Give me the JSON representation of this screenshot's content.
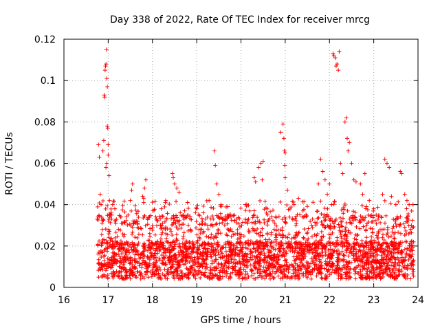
{
  "chart_data": {
    "type": "scatter",
    "title": "Day 338 of 2022, Rate Of TEC Index for receiver mrcg",
    "xlabel": "GPS time / hours",
    "ylabel": "ROTI / TECUs",
    "xlim": [
      16,
      24
    ],
    "ylim": [
      0,
      0.12
    ],
    "xticks": [
      16,
      17,
      18,
      19,
      20,
      21,
      22,
      23,
      24
    ],
    "xtick_labels": [
      "16",
      "17",
      "18",
      "19",
      "20",
      "21",
      "22",
      "23",
      "24"
    ],
    "yticks": [
      0,
      0.02,
      0.04,
      0.06,
      0.08,
      0.1,
      0.12
    ],
    "ytick_labels": [
      "0",
      "0.02",
      "0.04",
      "0.06",
      "0.08",
      "0.1",
      "0.12"
    ],
    "grid": true,
    "marker": "+",
    "color": "#ff0000",
    "series": [
      {
        "name": "ROTI",
        "points": [
          [
            16.78,
            0.069
          ],
          [
            16.8,
            0.063
          ],
          [
            16.82,
            0.045
          ],
          [
            16.84,
            0.04
          ],
          [
            16.85,
            0.034
          ],
          [
            16.86,
            0.031
          ],
          [
            16.87,
            0.028
          ],
          [
            16.88,
            0.066
          ],
          [
            16.9,
            0.071
          ],
          [
            16.91,
            0.093
          ],
          [
            16.92,
            0.092
          ],
          [
            16.93,
            0.105
          ],
          [
            16.94,
            0.107
          ],
          [
            16.95,
            0.108
          ],
          [
            16.96,
            0.115
          ],
          [
            16.97,
            0.101
          ],
          [
            16.98,
            0.097
          ],
          [
            16.98,
            0.078
          ],
          [
            16.99,
            0.077
          ],
          [
            17.0,
            0.069
          ],
          [
            17.0,
            0.064
          ],
          [
            16.97,
            0.06
          ],
          [
            16.95,
            0.058
          ],
          [
            17.02,
            0.054
          ],
          [
            17.03,
            0.042
          ],
          [
            17.05,
            0.035
          ],
          [
            17.08,
            0.033
          ],
          [
            17.1,
            0.04
          ],
          [
            17.15,
            0.038
          ],
          [
            17.3,
            0.031
          ],
          [
            17.45,
            0.035
          ],
          [
            17.5,
            0.042
          ],
          [
            17.53,
            0.047
          ],
          [
            17.55,
            0.05
          ],
          [
            17.78,
            0.044
          ],
          [
            17.8,
            0.043
          ],
          [
            17.82,
            0.048
          ],
          [
            17.85,
            0.052
          ],
          [
            18.0,
            0.03
          ],
          [
            18.2,
            0.038
          ],
          [
            18.3,
            0.042
          ],
          [
            18.45,
            0.055
          ],
          [
            18.47,
            0.053
          ],
          [
            18.5,
            0.05
          ],
          [
            18.55,
            0.048
          ],
          [
            18.6,
            0.046
          ],
          [
            18.8,
            0.035
          ],
          [
            19.0,
            0.038
          ],
          [
            19.2,
            0.033
          ],
          [
            19.4,
            0.066
          ],
          [
            19.42,
            0.059
          ],
          [
            19.45,
            0.05
          ],
          [
            19.5,
            0.045
          ],
          [
            19.55,
            0.04
          ],
          [
            19.7,
            0.035
          ],
          [
            19.9,
            0.033
          ],
          [
            20.1,
            0.04
          ],
          [
            20.2,
            0.037
          ],
          [
            20.3,
            0.053
          ],
          [
            20.33,
            0.051
          ],
          [
            20.4,
            0.058
          ],
          [
            20.45,
            0.06
          ],
          [
            20.5,
            0.061
          ],
          [
            20.48,
            0.052
          ],
          [
            20.6,
            0.035
          ],
          [
            20.75,
            0.028
          ],
          [
            20.9,
            0.075
          ],
          [
            20.95,
            0.079
          ],
          [
            20.97,
            0.072
          ],
          [
            20.98,
            0.066
          ],
          [
            21.0,
            0.065
          ],
          [
            20.99,
            0.059
          ],
          [
            21.0,
            0.053
          ],
          [
            21.05,
            0.047
          ],
          [
            21.1,
            0.034
          ],
          [
            21.2,
            0.04
          ],
          [
            21.3,
            0.043
          ],
          [
            21.4,
            0.037
          ],
          [
            21.6,
            0.03
          ],
          [
            21.75,
            0.05
          ],
          [
            21.8,
            0.062
          ],
          [
            21.85,
            0.056
          ],
          [
            21.9,
            0.052
          ],
          [
            21.95,
            0.045
          ],
          [
            22.0,
            0.05
          ],
          [
            22.05,
            0.04
          ],
          [
            22.08,
            0.113
          ],
          [
            22.1,
            0.112
          ],
          [
            22.13,
            0.111
          ],
          [
            22.15,
            0.107
          ],
          [
            22.17,
            0.108
          ],
          [
            22.2,
            0.105
          ],
          [
            22.22,
            0.114
          ],
          [
            22.25,
            0.06
          ],
          [
            22.3,
            0.055
          ],
          [
            22.35,
            0.08
          ],
          [
            22.38,
            0.082
          ],
          [
            22.4,
            0.072
          ],
          [
            22.42,
            0.066
          ],
          [
            22.45,
            0.07
          ],
          [
            22.5,
            0.06
          ],
          [
            22.55,
            0.052
          ],
          [
            22.6,
            0.051
          ],
          [
            22.7,
            0.05
          ],
          [
            22.75,
            0.045
          ],
          [
            22.8,
            0.055
          ],
          [
            22.9,
            0.042
          ],
          [
            23.0,
            0.038
          ],
          [
            23.1,
            0.033
          ],
          [
            23.2,
            0.045
          ],
          [
            23.25,
            0.062
          ],
          [
            23.3,
            0.06
          ],
          [
            23.35,
            0.058
          ],
          [
            23.4,
            0.044
          ],
          [
            23.5,
            0.04
          ],
          [
            23.6,
            0.056
          ],
          [
            23.63,
            0.055
          ],
          [
            23.7,
            0.045
          ],
          [
            23.75,
            0.042
          ],
          [
            23.8,
            0.04
          ],
          [
            23.85,
            0.03
          ],
          [
            23.9,
            0.022
          ]
        ]
      }
    ]
  }
}
